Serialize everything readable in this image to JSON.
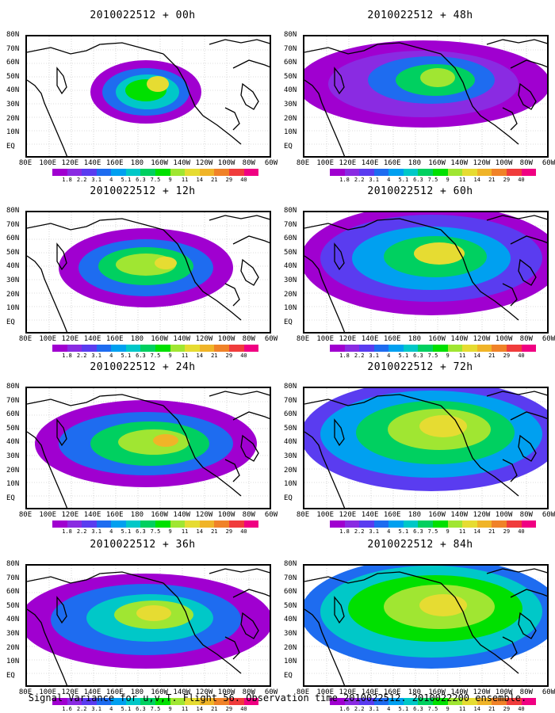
{
  "panels": [
    {
      "title": "2010022512 + 00h"
    },
    {
      "title": "2010022512 + 48h"
    },
    {
      "title": "2010022512 + 12h"
    },
    {
      "title": "2010022512 + 60h"
    },
    {
      "title": "2010022512 + 24h"
    },
    {
      "title": "2010022512 + 72h"
    },
    {
      "title": "2010022512 + 36h"
    },
    {
      "title": "2010022512 + 84h"
    }
  ],
  "axes": {
    "y_labels": [
      "80N",
      "70N",
      "60N",
      "50N",
      "40N",
      "30N",
      "20N",
      "10N",
      "EQ"
    ],
    "x_labels": [
      "80E",
      "100E",
      "120E",
      "140E",
      "160E",
      "180",
      "160W",
      "140W",
      "120W",
      "100W",
      "80W",
      "60W"
    ]
  },
  "colorbar": {
    "labels": [
      "1.8",
      "2.2",
      "3.1",
      "4",
      "5.1",
      "6.3",
      "7.5",
      "9",
      "11",
      "14",
      "21",
      "29",
      "40"
    ],
    "labels_last_panel": [
      "1.6",
      "2.2",
      "3.1",
      "4",
      "5.1",
      "6.3",
      "7.5",
      "9",
      "11",
      "14",
      "21",
      "29",
      "40"
    ],
    "colors": [
      "#a000d0",
      "#8a2be2",
      "#5a3cf0",
      "#1e6cf0",
      "#00a0f0",
      "#00c8c8",
      "#00d060",
      "#00e000",
      "#a0e632",
      "#e6dc32",
      "#f0b428",
      "#f08228",
      "#f03c3c",
      "#f00082"
    ]
  },
  "caption": "Signal Variance for u,v,T. Flight 56. Observation time 2010022512. 2010022200 ensemble."
}
